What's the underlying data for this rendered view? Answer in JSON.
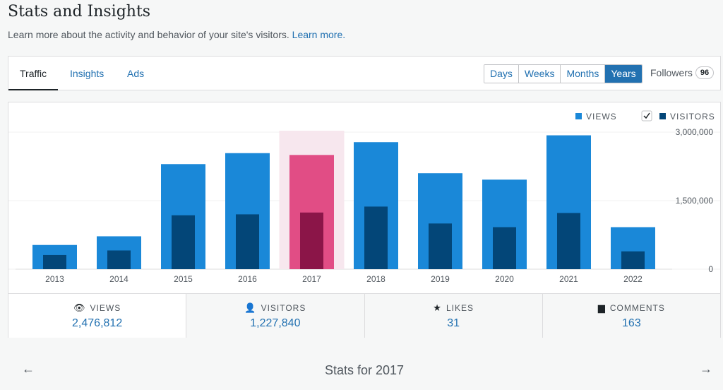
{
  "header": {
    "title": "Stats and Insights",
    "subtitle": "Learn more about the activity and behavior of your site's visitors.",
    "learn_more": "Learn more."
  },
  "tabs": [
    "Traffic",
    "Insights",
    "Ads"
  ],
  "period": {
    "options": [
      "Days",
      "Weeks",
      "Months",
      "Years"
    ],
    "selected": "Years"
  },
  "followers": {
    "label": "Followers",
    "count": "96"
  },
  "legend": {
    "views": "VIEWS",
    "visitors": "VISITORS",
    "visitors_checked": true
  },
  "colors": {
    "views": "#1a88d8",
    "visitors": "#034678",
    "highlight_views": "#e14d85",
    "highlight_visitors": "#8b1548",
    "highlight_bg": "#f7e7ee"
  },
  "chart_data": {
    "type": "bar",
    "categories": [
      "2013",
      "2014",
      "2015",
      "2016",
      "2017",
      "2018",
      "2019",
      "2020",
      "2021",
      "2022"
    ],
    "series": [
      {
        "name": "VIEWS",
        "values": [
          530000,
          720000,
          2300000,
          2540000,
          2500000,
          2780000,
          2100000,
          1960000,
          2930000,
          920000
        ]
      },
      {
        "name": "VISITORS",
        "values": [
          310000,
          410000,
          1180000,
          1200000,
          1240000,
          1370000,
          1000000,
          920000,
          1230000,
          390000
        ]
      }
    ],
    "highlight": "2017",
    "ylim": [
      0,
      3000000
    ],
    "yticks": [
      "3,000,000",
      "1,500,000",
      "0"
    ],
    "grid": true,
    "legend_position": "top-right"
  },
  "summary": [
    {
      "label": "VIEWS",
      "value": "2,476,812",
      "icon": "eye-icon"
    },
    {
      "label": "VISITORS",
      "value": "1,227,840",
      "icon": "person-icon"
    },
    {
      "label": "LIKES",
      "value": "31",
      "icon": "star-icon"
    },
    {
      "label": "COMMENTS",
      "value": "163",
      "icon": "comment-icon"
    }
  ],
  "nav": {
    "title": "Stats for 2017",
    "prev": "←",
    "next": "→"
  }
}
